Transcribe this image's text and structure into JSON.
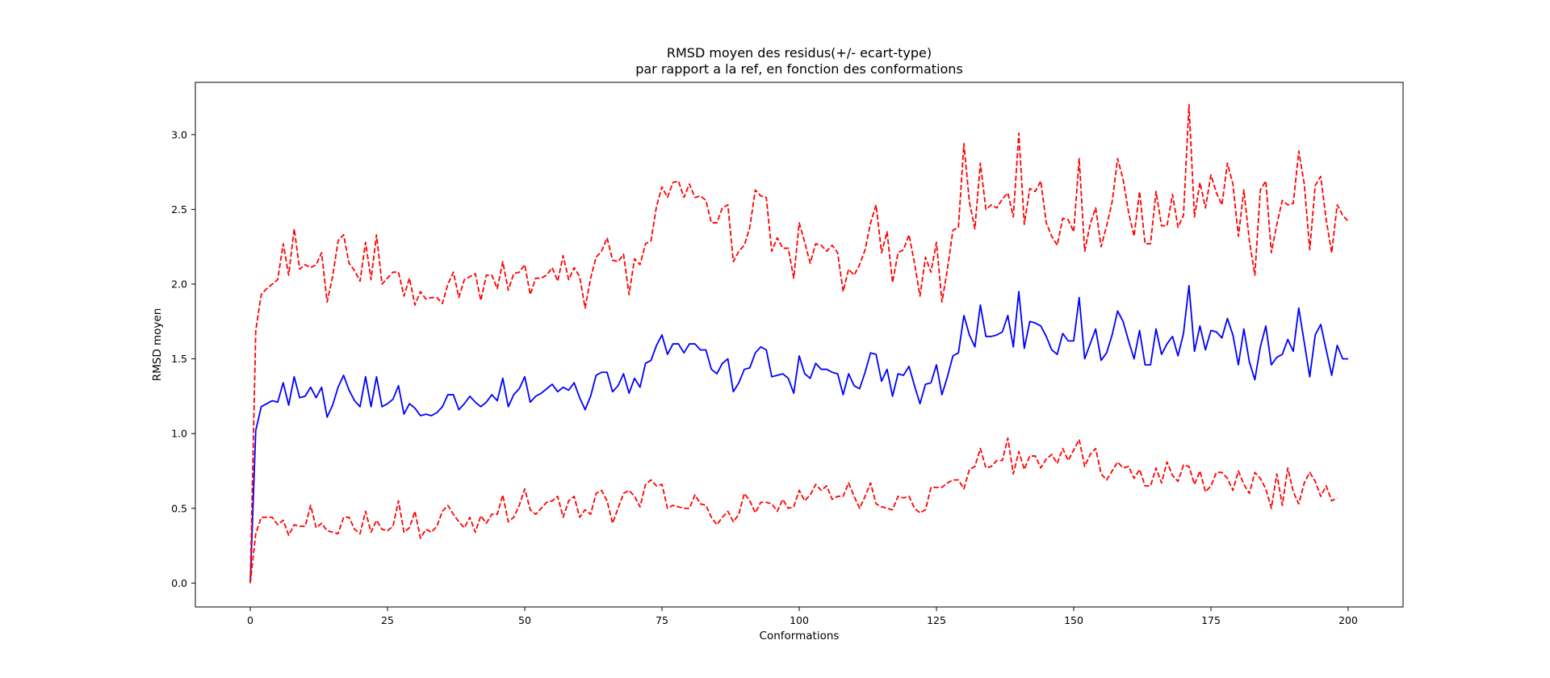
{
  "chart_data": {
    "type": "line",
    "title": "RMSD moyen des residus(+/- ecart-type)",
    "subtitle": "par rapport a la ref, en fonction des conformations",
    "xlabel": "Conformations",
    "ylabel": "RMSD moyen",
    "xlim": [
      -10,
      210
    ],
    "ylim": [
      -0.16,
      3.35
    ],
    "xticks": [
      0,
      25,
      50,
      75,
      100,
      125,
      150,
      175,
      200
    ],
    "xtick_labels": [
      "0",
      "25",
      "50",
      "75",
      "100",
      "125",
      "150",
      "175",
      "200"
    ],
    "yticks": [
      0.0,
      0.5,
      1.0,
      1.5,
      2.0,
      2.5,
      3.0
    ],
    "ytick_labels": [
      "0.0",
      "0.5",
      "1.0",
      "1.5",
      "2.0",
      "2.5",
      "3.0"
    ],
    "grid": false,
    "legend": "none",
    "x_start": 0,
    "x_step": 1,
    "series": [
      {
        "color": "#0000ff",
        "dash": "solid",
        "values": [
          0.0,
          1.02,
          1.18,
          1.2,
          1.22,
          1.21,
          1.34,
          1.19,
          1.38,
          1.24,
          1.25,
          1.31,
          1.24,
          1.31,
          1.11,
          1.19,
          1.31,
          1.39,
          1.29,
          1.22,
          1.18,
          1.38,
          1.18,
          1.38,
          1.18,
          1.2,
          1.23,
          1.32,
          1.13,
          1.2,
          1.17,
          1.12,
          1.13,
          1.12,
          1.14,
          1.18,
          1.26,
          1.26,
          1.16,
          1.2,
          1.25,
          1.21,
          1.18,
          1.21,
          1.26,
          1.22,
          1.37,
          1.18,
          1.26,
          1.3,
          1.38,
          1.21,
          1.25,
          1.27,
          1.3,
          1.33,
          1.28,
          1.31,
          1.29,
          1.34,
          1.24,
          1.16,
          1.25,
          1.39,
          1.41,
          1.41,
          1.28,
          1.32,
          1.4,
          1.27,
          1.37,
          1.31,
          1.47,
          1.49,
          1.59,
          1.66,
          1.53,
          1.6,
          1.6,
          1.54,
          1.6,
          1.6,
          1.56,
          1.56,
          1.43,
          1.4,
          1.47,
          1.5,
          1.28,
          1.34,
          1.43,
          1.44,
          1.54,
          1.58,
          1.56,
          1.38,
          1.39,
          1.4,
          1.37,
          1.27,
          1.52,
          1.4,
          1.37,
          1.47,
          1.43,
          1.43,
          1.41,
          1.4,
          1.26,
          1.4,
          1.32,
          1.3,
          1.41,
          1.54,
          1.53,
          1.35,
          1.43,
          1.25,
          1.4,
          1.39,
          1.45,
          1.32,
          1.2,
          1.33,
          1.34,
          1.46,
          1.26,
          1.38,
          1.52,
          1.54,
          1.79,
          1.66,
          1.58,
          1.86,
          1.65,
          1.65,
          1.66,
          1.68,
          1.79,
          1.58,
          1.95,
          1.57,
          1.75,
          1.74,
          1.72,
          1.65,
          1.56,
          1.53,
          1.67,
          1.62,
          1.62,
          1.91,
          1.5,
          1.6,
          1.7,
          1.49,
          1.54,
          1.66,
          1.82,
          1.75,
          1.62,
          1.5,
          1.69,
          1.46,
          1.46,
          1.7,
          1.53,
          1.6,
          1.65,
          1.52,
          1.67,
          1.99,
          1.55,
          1.72,
          1.56,
          1.69,
          1.68,
          1.64,
          1.77,
          1.66,
          1.46,
          1.7,
          1.48,
          1.36,
          1.58,
          1.72,
          1.46,
          1.51,
          1.53,
          1.63,
          1.55,
          1.84,
          1.61,
          1.38,
          1.66,
          1.73,
          1.56,
          1.39,
          1.59,
          1.5,
          1.5
        ]
      },
      {
        "color": "#ff0000",
        "dash": "dashed",
        "values": [
          0.0,
          1.69,
          1.93,
          1.97,
          2.0,
          2.03,
          2.27,
          2.06,
          2.37,
          2.1,
          2.13,
          2.11,
          2.13,
          2.21,
          1.88,
          2.05,
          2.29,
          2.33,
          2.14,
          2.09,
          2.02,
          2.28,
          2.03,
          2.33,
          2.0,
          2.04,
          2.08,
          2.08,
          1.92,
          2.04,
          1.86,
          1.95,
          1.9,
          1.91,
          1.91,
          1.87,
          2.0,
          2.08,
          1.91,
          2.03,
          2.05,
          2.07,
          1.89,
          2.06,
          2.06,
          1.97,
          2.15,
          1.96,
          2.07,
          2.08,
          2.13,
          1.93,
          2.04,
          2.04,
          2.06,
          2.11,
          2.02,
          2.19,
          2.03,
          2.11,
          2.05,
          1.84,
          2.04,
          2.18,
          2.22,
          2.31,
          2.16,
          2.15,
          2.2,
          1.93,
          2.17,
          2.13,
          2.27,
          2.29,
          2.52,
          2.65,
          2.58,
          2.68,
          2.69,
          2.58,
          2.67,
          2.58,
          2.59,
          2.56,
          2.41,
          2.41,
          2.51,
          2.53,
          2.15,
          2.22,
          2.26,
          2.38,
          2.63,
          2.59,
          2.58,
          2.22,
          2.31,
          2.24,
          2.24,
          2.04,
          2.41,
          2.28,
          2.14,
          2.27,
          2.26,
          2.22,
          2.26,
          2.21,
          1.95,
          2.1,
          2.06,
          2.13,
          2.23,
          2.41,
          2.53,
          2.21,
          2.35,
          2.01,
          2.21,
          2.23,
          2.33,
          2.14,
          1.92,
          2.18,
          2.08,
          2.28,
          1.88,
          2.1,
          2.36,
          2.38,
          2.94,
          2.55,
          2.37,
          2.81,
          2.5,
          2.53,
          2.51,
          2.57,
          2.61,
          2.45,
          3.01,
          2.4,
          2.64,
          2.62,
          2.69,
          2.41,
          2.32,
          2.26,
          2.44,
          2.43,
          2.35,
          2.84,
          2.22,
          2.4,
          2.51,
          2.25,
          2.39,
          2.55,
          2.84,
          2.7,
          2.48,
          2.32,
          2.62,
          2.27,
          2.27,
          2.62,
          2.39,
          2.39,
          2.6,
          2.38,
          2.46,
          3.2,
          2.45,
          2.68,
          2.51,
          2.73,
          2.61,
          2.53,
          2.81,
          2.67,
          2.32,
          2.63,
          2.29,
          2.06,
          2.63,
          2.69,
          2.21,
          2.4,
          2.56,
          2.53,
          2.54,
          2.89,
          2.67,
          2.23,
          2.66,
          2.72,
          2.43,
          2.21,
          2.53,
          2.46,
          2.42
        ]
      },
      {
        "color": "#ff0000",
        "dash": "dashed",
        "values": [
          0.0,
          0.33,
          0.44,
          0.44,
          0.44,
          0.39,
          0.42,
          0.32,
          0.39,
          0.38,
          0.38,
          0.52,
          0.37,
          0.4,
          0.35,
          0.34,
          0.33,
          0.44,
          0.44,
          0.36,
          0.33,
          0.48,
          0.34,
          0.42,
          0.36,
          0.35,
          0.38,
          0.55,
          0.34,
          0.37,
          0.48,
          0.3,
          0.36,
          0.34,
          0.38,
          0.48,
          0.52,
          0.46,
          0.41,
          0.37,
          0.44,
          0.34,
          0.45,
          0.4,
          0.46,
          0.46,
          0.59,
          0.41,
          0.44,
          0.52,
          0.63,
          0.49,
          0.46,
          0.5,
          0.54,
          0.55,
          0.58,
          0.44,
          0.55,
          0.58,
          0.44,
          0.49,
          0.46,
          0.6,
          0.62,
          0.55,
          0.4,
          0.5,
          0.6,
          0.62,
          0.58,
          0.51,
          0.66,
          0.69,
          0.65,
          0.66,
          0.5,
          0.52,
          0.51,
          0.5,
          0.5,
          0.59,
          0.53,
          0.52,
          0.44,
          0.39,
          0.44,
          0.48,
          0.41,
          0.46,
          0.6,
          0.55,
          0.47,
          0.54,
          0.54,
          0.53,
          0.48,
          0.56,
          0.5,
          0.51,
          0.62,
          0.55,
          0.59,
          0.66,
          0.62,
          0.65,
          0.56,
          0.58,
          0.58,
          0.67,
          0.58,
          0.5,
          0.58,
          0.67,
          0.53,
          0.51,
          0.5,
          0.49,
          0.58,
          0.57,
          0.58,
          0.5,
          0.47,
          0.49,
          0.64,
          0.64,
          0.64,
          0.67,
          0.69,
          0.69,
          0.63,
          0.76,
          0.78,
          0.9,
          0.77,
          0.78,
          0.82,
          0.82,
          0.97,
          0.73,
          0.88,
          0.76,
          0.85,
          0.85,
          0.77,
          0.83,
          0.86,
          0.8,
          0.9,
          0.82,
          0.89,
          0.96,
          0.78,
          0.86,
          0.9,
          0.73,
          0.69,
          0.75,
          0.81,
          0.77,
          0.78,
          0.7,
          0.76,
          0.65,
          0.65,
          0.77,
          0.67,
          0.81,
          0.72,
          0.68,
          0.79,
          0.78,
          0.66,
          0.75,
          0.61,
          0.65,
          0.74,
          0.74,
          0.7,
          0.62,
          0.75,
          0.66,
          0.6,
          0.74,
          0.7,
          0.63,
          0.5,
          0.73,
          0.52,
          0.77,
          0.61,
          0.53,
          0.67,
          0.74,
          0.68,
          0.58,
          0.65,
          0.55,
          0.57
        ]
      }
    ]
  }
}
